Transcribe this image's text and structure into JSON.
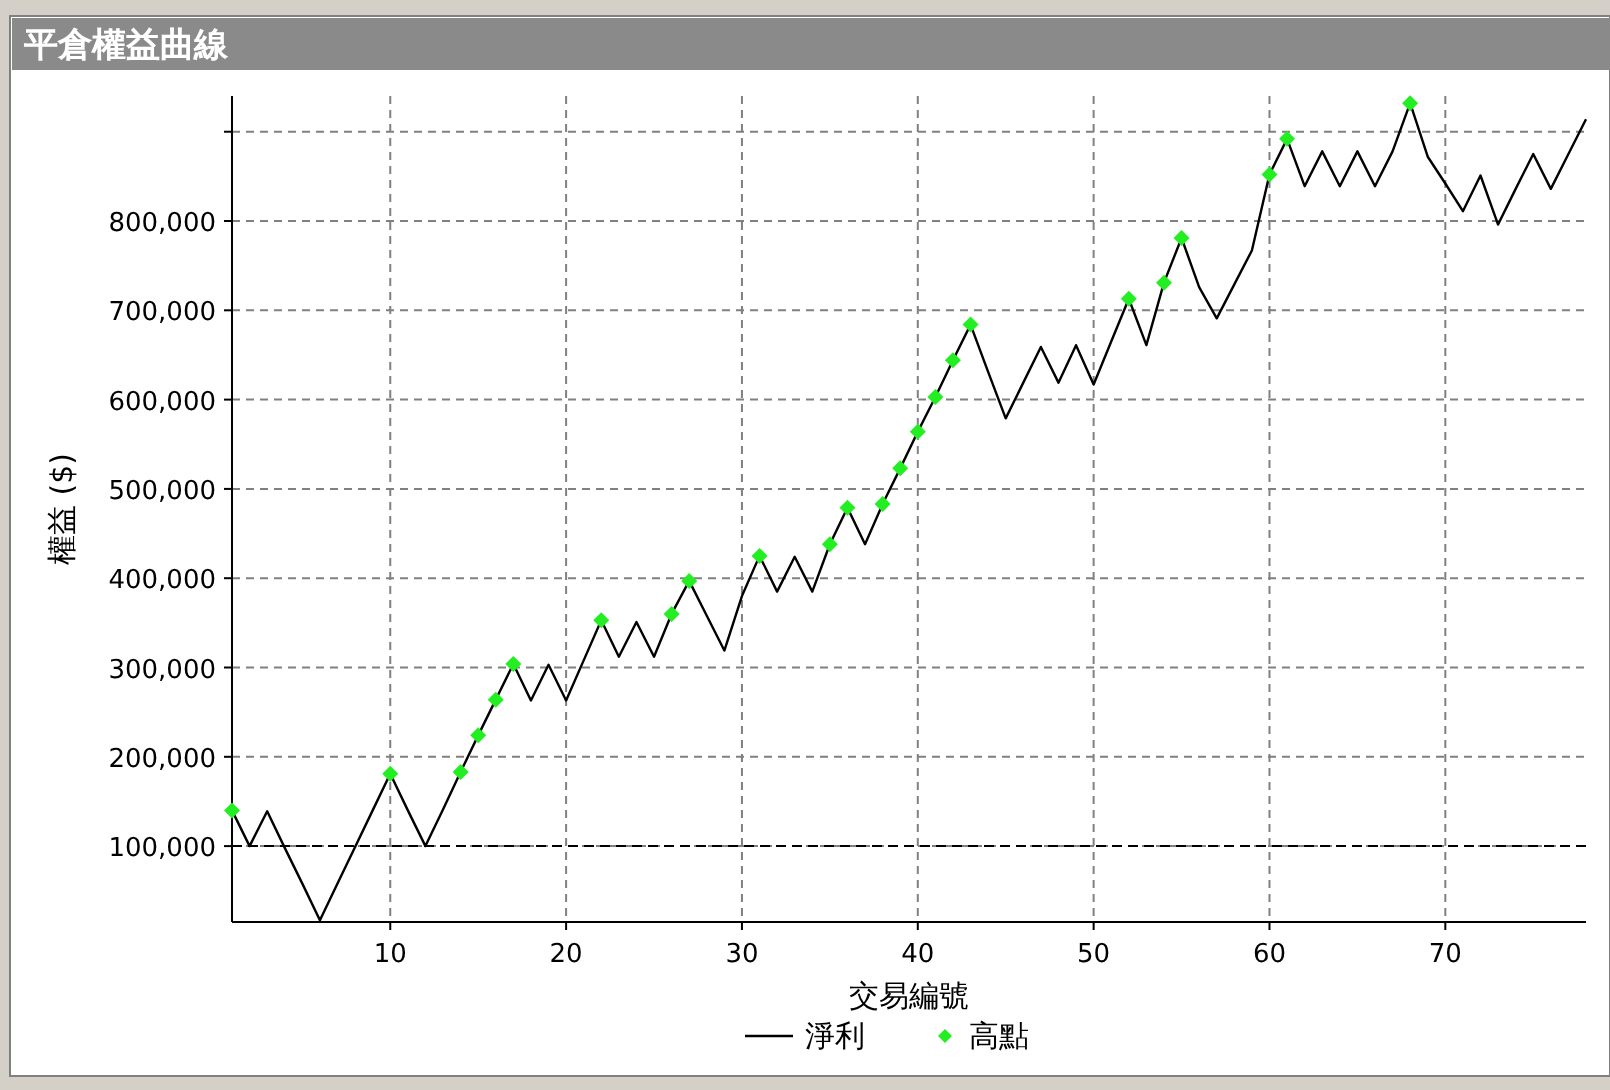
{
  "chart_data": {
    "type": "line",
    "title": "平倉權益曲線",
    "xlabel": "交易編號",
    "ylabel": "權益 ($)",
    "xlim": [
      1,
      78
    ],
    "xticks": [
      10,
      20,
      30,
      40,
      50,
      60,
      70
    ],
    "ylim": [
      15000,
      940000
    ],
    "yticks": [
      {
        "value": 100000,
        "label": "100,000"
      },
      {
        "value": 200000,
        "label": "200,000"
      },
      {
        "value": 300000,
        "label": "300,000"
      },
      {
        "value": 400000,
        "label": "400,000"
      },
      {
        "value": 500000,
        "label": "500,000"
      },
      {
        "value": 600000,
        "label": "600,000"
      },
      {
        "value": 700000,
        "label": "700,000"
      },
      {
        "value": 800000,
        "label": "800,000"
      },
      {
        "value": 900000,
        "label": null
      }
    ],
    "grid": true,
    "legend": "bottom",
    "ref_lines": [
      {
        "axis": "y",
        "value": 100000,
        "color": "#000000",
        "line_style": "dashed"
      }
    ],
    "series": [
      {
        "name": "淨利",
        "type": "line",
        "color": "#000000",
        "x": [
          1,
          2,
          3,
          4,
          5,
          6,
          7,
          8,
          9,
          10,
          11,
          12,
          13,
          14,
          15,
          16,
          17,
          18,
          19,
          20,
          21,
          22,
          23,
          24,
          25,
          26,
          27,
          28,
          29,
          30,
          31,
          32,
          33,
          34,
          35,
          36,
          37,
          38,
          39,
          40,
          41,
          42,
          43,
          44,
          45,
          46,
          47,
          48,
          49,
          50,
          51,
          52,
          53,
          54,
          55,
          56,
          57,
          58,
          59,
          60,
          61,
          62,
          63,
          64,
          65,
          66,
          67,
          68,
          69,
          70,
          71,
          72,
          73,
          74,
          75,
          76,
          77,
          78
        ],
        "values": [
          140000,
          100000,
          139000,
          98000,
          58000,
          17000,
          58000,
          99000,
          140000,
          181000,
          140000,
          100000,
          141000,
          183000,
          224000,
          264000,
          304000,
          263000,
          303000,
          263000,
          308000,
          353000,
          312000,
          351000,
          312000,
          360000,
          397000,
          358000,
          319000,
          380000,
          425000,
          385000,
          424000,
          385000,
          438000,
          479000,
          438000,
          483000,
          523000,
          564000,
          603000,
          644000,
          684000,
          631000,
          579000,
          619000,
          659000,
          619000,
          661000,
          617000,
          665000,
          713000,
          661000,
          731000,
          781000,
          726000,
          691000,
          729000,
          767000,
          852000,
          892000,
          839000,
          878000,
          839000,
          878000,
          839000,
          878000,
          932000,
          872000,
          842000,
          811000,
          851000,
          796000,
          836000,
          875000,
          836000,
          875000,
          914000
        ]
      },
      {
        "name": "高點",
        "type": "scatter",
        "color": "#22ee22",
        "marker": "diamond",
        "x": [
          1,
          10,
          14,
          15,
          16,
          17,
          22,
          26,
          27,
          31,
          35,
          36,
          38,
          39,
          40,
          41,
          42,
          43,
          52,
          54,
          55,
          60,
          61,
          68
        ],
        "values": [
          140000,
          181000,
          183000,
          224000,
          264000,
          304000,
          353000,
          360000,
          397000,
          425000,
          438000,
          479000,
          483000,
          523000,
          564000,
          603000,
          644000,
          684000,
          713000,
          731000,
          781000,
          852000,
          892000,
          932000
        ]
      }
    ]
  }
}
